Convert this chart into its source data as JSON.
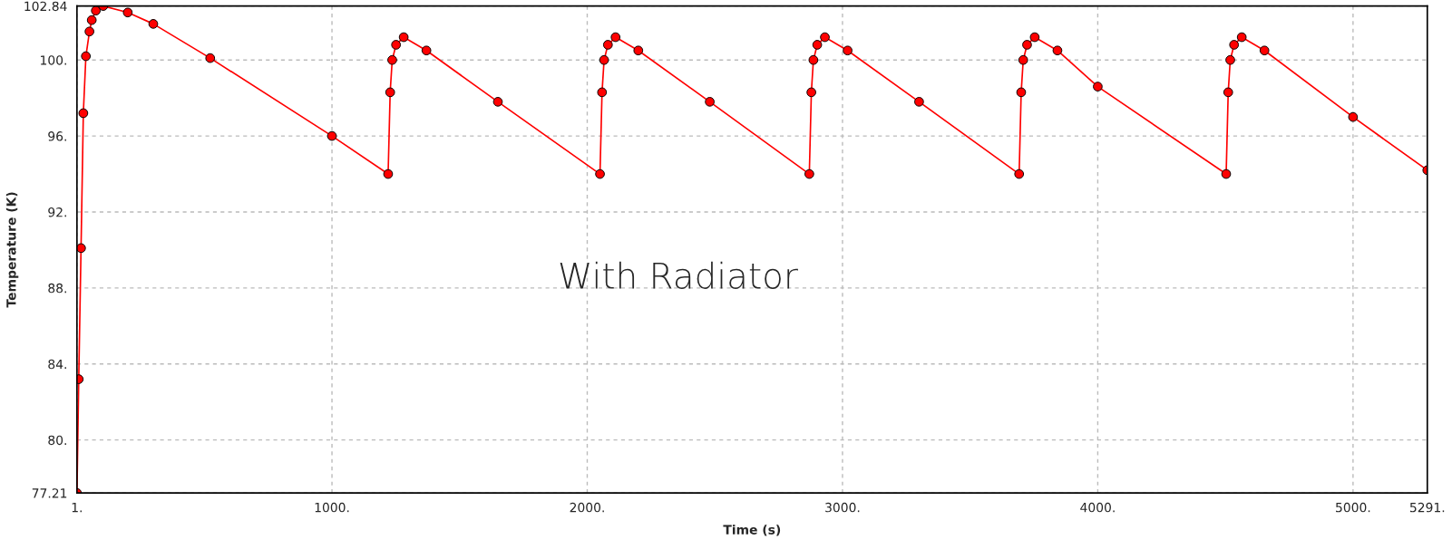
{
  "chart_data": {
    "type": "line",
    "xlabel": "Time (s)",
    "ylabel": "Temperature (K)",
    "annotations": [
      "With Radiator"
    ],
    "xlim": [
      1,
      5291
    ],
    "xticks": [
      {
        "value": 1,
        "label": "1."
      },
      {
        "value": 1000,
        "label": "1000."
      },
      {
        "value": 2000,
        "label": "2000."
      },
      {
        "value": 3000,
        "label": "3000."
      },
      {
        "value": 4000,
        "label": "4000."
      },
      {
        "value": 5000,
        "label": "5000."
      },
      {
        "value": 5291,
        "label": "5291."
      }
    ],
    "ylim": [
      77.21,
      102.84
    ],
    "yticks": [
      77.21,
      {
        "value": 80,
        "label": "80."
      },
      {
        "value": 84,
        "label": "84."
      },
      {
        "value": 88,
        "label": "88."
      },
      {
        "value": 92,
        "label": "92."
      },
      {
        "value": 96,
        "label": "96."
      },
      {
        "value": 100,
        "label": "100."
      },
      102.84
    ],
    "grid": true,
    "marker": "circle",
    "line_style": "solid",
    "legend": false,
    "series": [
      {
        "color": "#ff0000",
        "x": [
          1,
          8,
          17,
          26,
          36,
          50,
          59,
          75,
          104,
          200,
          300,
          523,
          1000,
          1220,
          1228,
          1236,
          1251,
          1281,
          1370,
          1650,
          2050,
          2058,
          2066,
          2081,
          2111,
          2200,
          2480,
          2870,
          2878,
          2886,
          2901,
          2931,
          3020,
          3300,
          3692,
          3700,
          3708,
          3723,
          3753,
          3842,
          4000,
          4503,
          4511,
          4519,
          4534,
          4564,
          4653,
          5000,
          5291
        ],
        "values": [
          77.21,
          83.2,
          90.1,
          97.2,
          100.2,
          101.5,
          102.1,
          102.6,
          102.84,
          102.5,
          101.9,
          100.1,
          96.0,
          94.0,
          98.3,
          100.0,
          100.8,
          101.2,
          100.5,
          97.8,
          94.0,
          98.3,
          100.0,
          100.8,
          101.2,
          100.5,
          97.8,
          94.0,
          98.3,
          100.0,
          100.8,
          101.2,
          100.5,
          97.8,
          94.0,
          98.3,
          100.0,
          100.8,
          101.2,
          100.5,
          98.6,
          94.0,
          98.3,
          100.0,
          100.8,
          101.2,
          100.5,
          97.0,
          94.2
        ]
      }
    ]
  }
}
